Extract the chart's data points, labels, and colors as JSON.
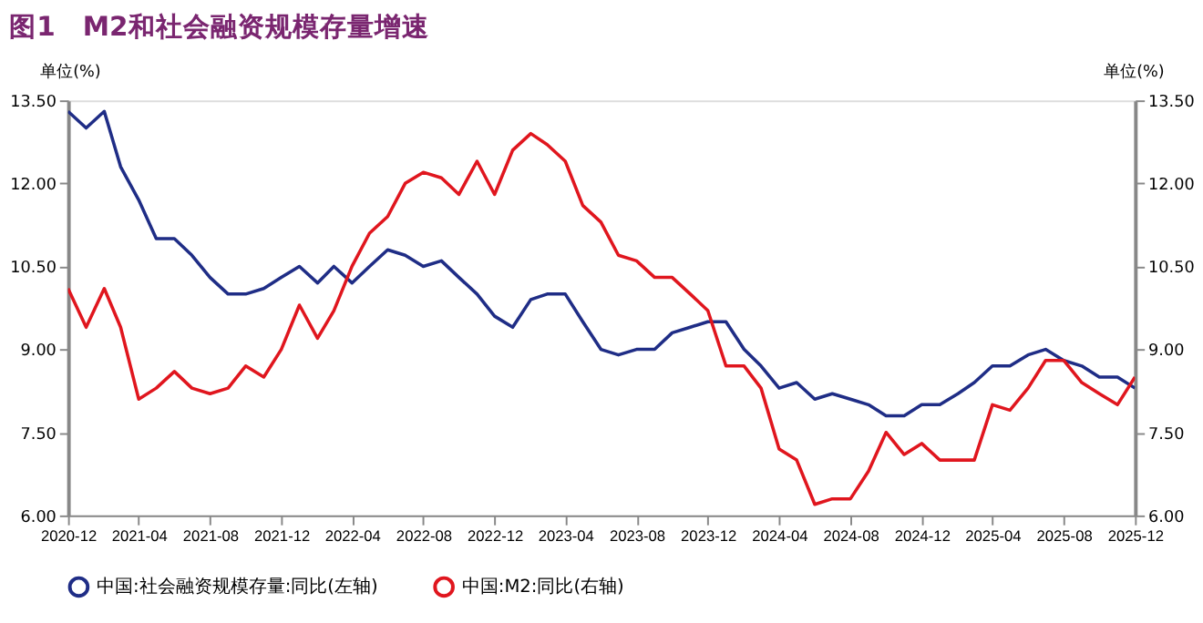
{
  "chart_data": {
    "type": "line",
    "title": "图1　M2和社会融资规模存量增速",
    "ylabel": "单位(%)",
    "y2label": "单位(%)",
    "x": [
      "2020-12",
      "2021-01",
      "2021-02",
      "2021-03",
      "2021-04",
      "2021-05",
      "2021-06",
      "2021-07",
      "2021-08",
      "2021-09",
      "2021-10",
      "2021-11",
      "2021-12",
      "2022-01",
      "2022-02",
      "2022-03",
      "2022-04",
      "2022-05",
      "2022-06",
      "2022-07",
      "2022-08",
      "2022-09",
      "2022-10",
      "2022-11",
      "2022-12",
      "2023-01",
      "2023-02",
      "2023-03",
      "2023-04",
      "2023-05",
      "2023-06",
      "2023-07",
      "2023-08",
      "2023-09",
      "2023-10",
      "2023-11",
      "2023-12",
      "2024-01",
      "2024-02",
      "2024-03",
      "2024-04",
      "2024-05",
      "2024-06",
      "2024-07",
      "2024-08",
      "2024-09",
      "2024-10",
      "2024-11",
      "2024-12",
      "2025-01",
      "2025-02",
      "2025-03",
      "2025-04",
      "2025-05",
      "2025-06",
      "2025-07",
      "2025-08",
      "2025-09",
      "2025-10",
      "2025-11",
      "2025-12"
    ],
    "series": [
      {
        "name": "中国:社会融资规模存量:同比(左轴)",
        "color": "#1f2d86",
        "values": [
          13.3,
          13.0,
          13.3,
          12.3,
          11.7,
          11.0,
          11.0,
          10.7,
          10.3,
          10.0,
          10.0,
          10.1,
          10.3,
          10.5,
          10.2,
          10.5,
          10.2,
          10.5,
          10.8,
          10.7,
          10.5,
          10.6,
          10.3,
          10.0,
          9.6,
          9.4,
          9.9,
          10.0,
          10.0,
          9.5,
          9.0,
          8.9,
          9.0,
          9.0,
          9.3,
          9.4,
          9.5,
          9.5,
          9.0,
          8.7,
          8.3,
          8.4,
          8.1,
          8.2,
          8.1,
          8.0,
          7.8,
          7.8,
          8.0,
          8.0,
          8.2,
          8.4,
          8.7,
          8.7,
          8.9,
          9.0,
          8.8,
          8.7,
          8.5,
          8.5,
          8.3
        ]
      },
      {
        "name": "中国:M2:同比(右轴)",
        "color": "#e0161e",
        "axis": "y2",
        "values": [
          10.1,
          9.4,
          10.1,
          9.4,
          8.1,
          8.3,
          8.6,
          8.3,
          8.2,
          8.3,
          8.7,
          8.5,
          9.0,
          9.8,
          9.2,
          9.7,
          10.5,
          11.1,
          11.4,
          12.0,
          12.2,
          12.1,
          11.8,
          12.4,
          11.8,
          12.6,
          12.9,
          12.7,
          12.4,
          11.6,
          11.3,
          10.7,
          10.6,
          10.3,
          10.3,
          10.0,
          9.7,
          8.7,
          8.7,
          8.3,
          7.2,
          7.0,
          6.2,
          6.3,
          6.3,
          6.8,
          7.5,
          7.1,
          7.3,
          7.0,
          7.0,
          7.0,
          8.0,
          7.9,
          8.3,
          8.8,
          8.8,
          8.4,
          8.2,
          8.0,
          8.5
        ]
      }
    ],
    "xlim": [
      "2020-12",
      "2025-12"
    ],
    "xticks": [
      "2020-12",
      "2021-04",
      "2021-08",
      "2021-12",
      "2022-04",
      "2022-08",
      "2022-12",
      "2023-04",
      "2023-08",
      "2023-12",
      "2024-04",
      "2024-08",
      "2024-12",
      "2025-04",
      "2025-08",
      "2025-12"
    ],
    "ylim": [
      6,
      13.5
    ],
    "yticks": [
      {
        "value": 6,
        "label": "6.00"
      },
      {
        "value": 7.5,
        "label": "7.50"
      },
      {
        "value": 9,
        "label": "9.00"
      },
      {
        "value": 10.5,
        "label": "10.50"
      },
      {
        "value": 12,
        "label": "12.00"
      },
      {
        "value": 13.5,
        "label": "13.50"
      }
    ],
    "y2lim": [
      6,
      13.5
    ],
    "y2ticks": [
      {
        "value": 6,
        "label": "6.00"
      },
      {
        "value": 7.5,
        "label": "7.50"
      },
      {
        "value": 9,
        "label": "9.00"
      },
      {
        "value": 10.5,
        "label": "10.50"
      },
      {
        "value": 12,
        "label": "12.00"
      },
      {
        "value": 13.5,
        "label": "13.50"
      }
    ],
    "grid": false,
    "legend": "bottom",
    "line_style": "solid"
  }
}
